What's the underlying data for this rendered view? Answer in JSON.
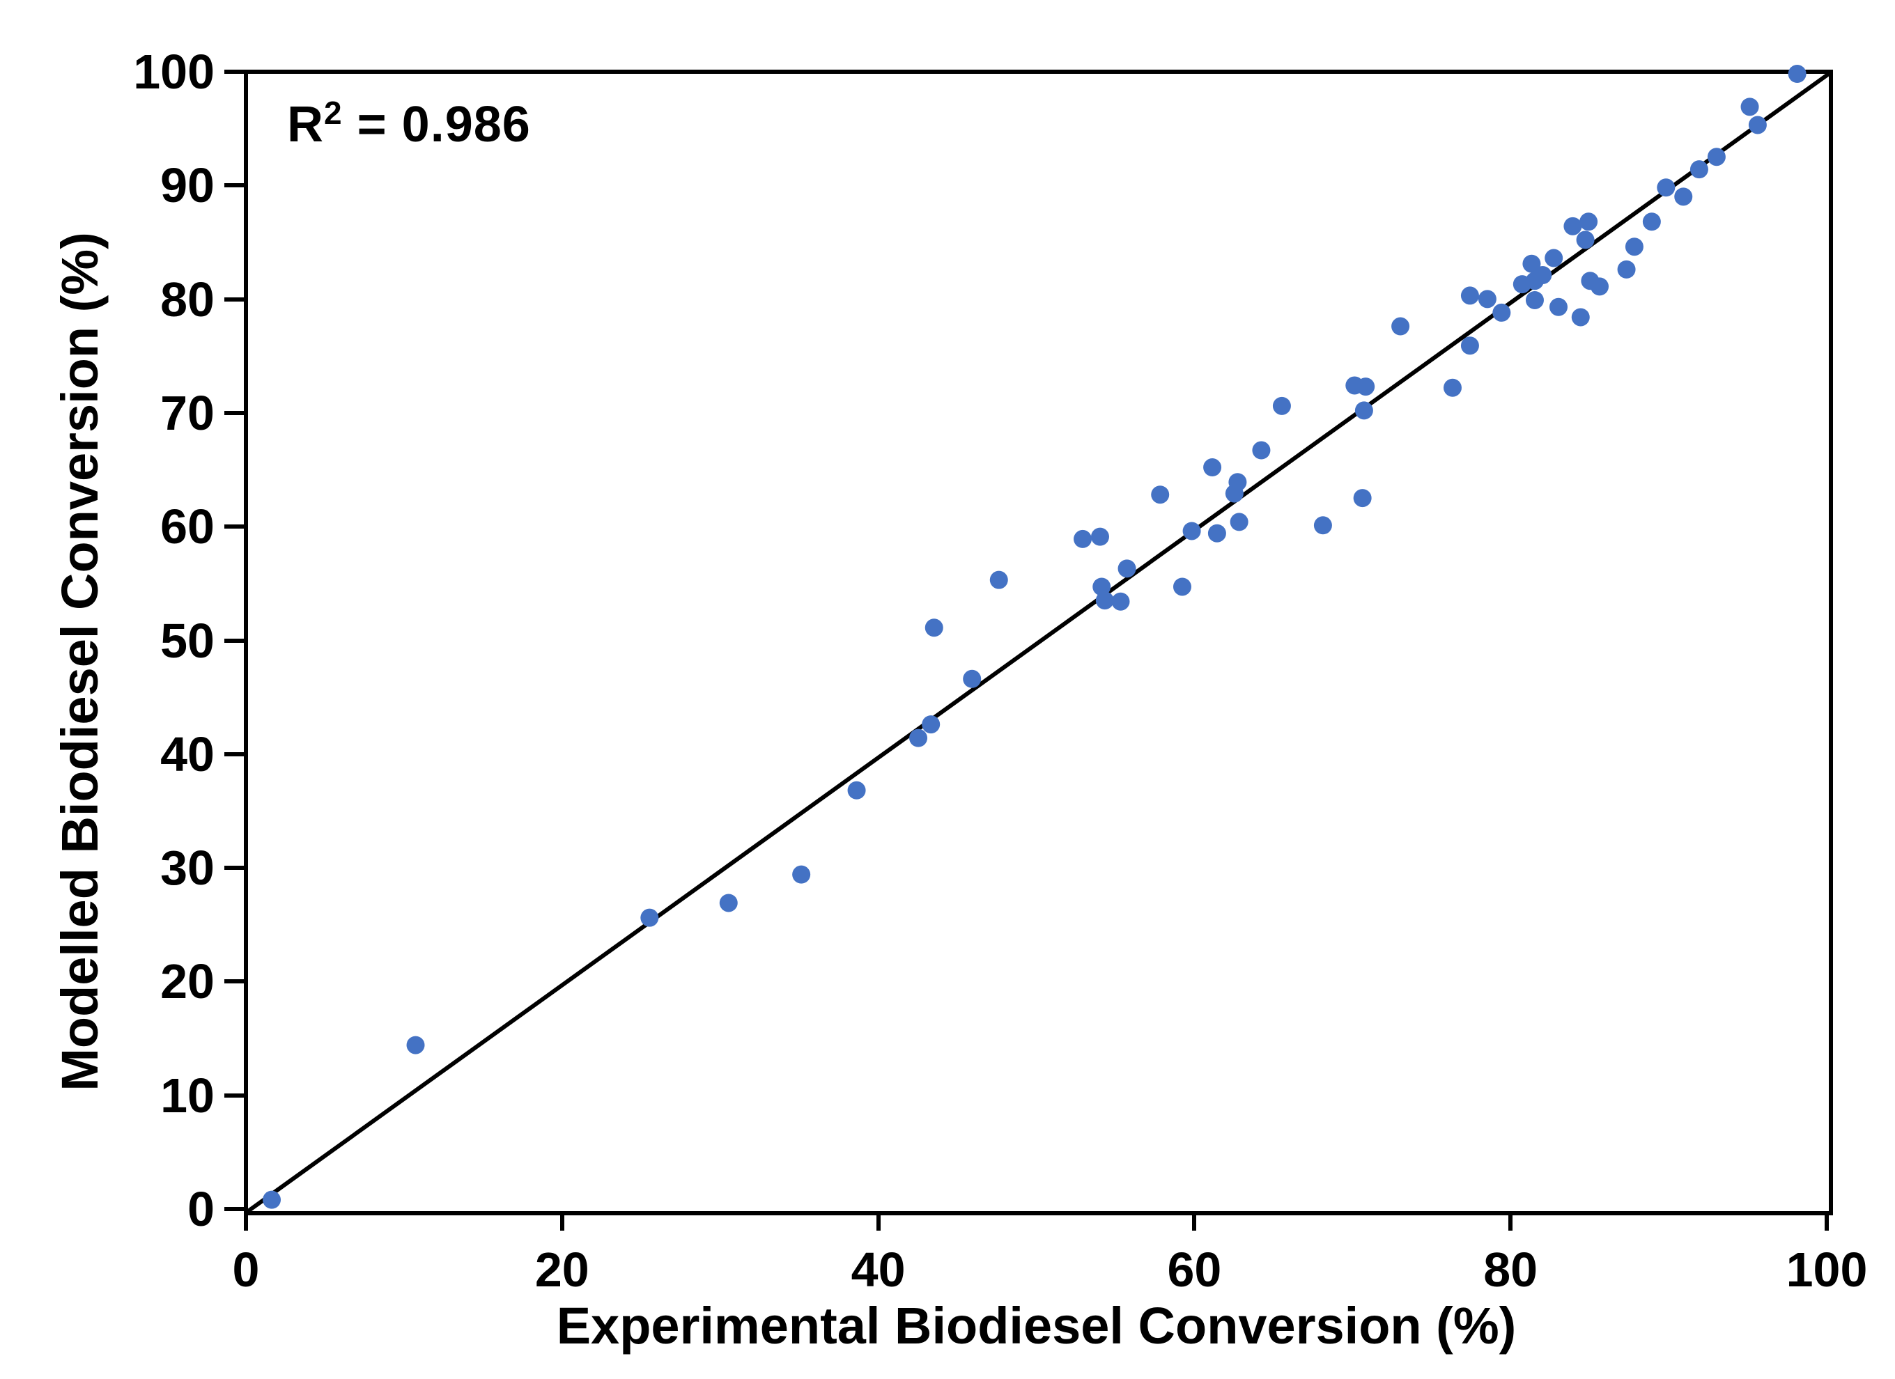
{
  "chart_data": {
    "type": "scatter",
    "title": "",
    "xlabel": "Experimental Biodiesel Conversion (%)",
    "ylabel": "Modelled Biodiesel Conversion (%)",
    "xlim": [
      0,
      100
    ],
    "ylim": [
      0,
      100
    ],
    "x_ticks": [
      0,
      20,
      40,
      60,
      80,
      100
    ],
    "y_ticks": [
      0,
      10,
      20,
      30,
      40,
      50,
      60,
      70,
      80,
      90,
      100
    ],
    "grid": false,
    "legend": "none",
    "annotation": {
      "base": "R",
      "sup": "2",
      "rest": " = 0.986"
    },
    "marker_color": "#4472C4",
    "marker_radius_px": 13,
    "axis_color": "#000000",
    "identity_line": {
      "from": [
        0,
        0
      ],
      "to": [
        100,
        100
      ],
      "color": "#000000"
    },
    "points": [
      [
        1.5,
        1.0
      ],
      [
        10.6,
        14.6
      ],
      [
        25.4,
        25.8
      ],
      [
        30.4,
        27.1
      ],
      [
        35.0,
        29.6
      ],
      [
        38.5,
        37.0
      ],
      [
        42.4,
        41.6
      ],
      [
        43.2,
        42.8
      ],
      [
        43.4,
        51.3
      ],
      [
        45.8,
        46.8
      ],
      [
        47.5,
        55.5
      ],
      [
        52.8,
        59.1
      ],
      [
        53.9,
        59.3
      ],
      [
        54.0,
        54.9
      ],
      [
        54.2,
        53.7
      ],
      [
        55.2,
        53.6
      ],
      [
        55.6,
        56.5
      ],
      [
        57.7,
        63.0
      ],
      [
        59.1,
        54.9
      ],
      [
        59.7,
        59.8
      ],
      [
        61.0,
        65.4
      ],
      [
        61.3,
        59.6
      ],
      [
        62.4,
        63.1
      ],
      [
        62.6,
        64.1
      ],
      [
        62.7,
        60.6
      ],
      [
        64.1,
        66.9
      ],
      [
        65.4,
        70.8
      ],
      [
        68.0,
        60.3
      ],
      [
        70.0,
        72.6
      ],
      [
        70.5,
        62.7
      ],
      [
        70.6,
        70.4
      ],
      [
        70.7,
        72.5
      ],
      [
        72.9,
        77.8
      ],
      [
        76.2,
        72.4
      ],
      [
        77.3,
        76.1
      ],
      [
        77.3,
        80.5
      ],
      [
        78.4,
        80.2
      ],
      [
        79.3,
        79.0
      ],
      [
        80.6,
        81.5
      ],
      [
        81.2,
        83.3
      ],
      [
        81.4,
        80.1
      ],
      [
        81.4,
        81.8
      ],
      [
        81.9,
        82.3
      ],
      [
        82.6,
        83.8
      ],
      [
        82.9,
        79.5
      ],
      [
        83.8,
        86.6
      ],
      [
        84.3,
        78.6
      ],
      [
        84.6,
        85.4
      ],
      [
        84.8,
        87.0
      ],
      [
        84.9,
        81.8
      ],
      [
        85.5,
        81.3
      ],
      [
        87.2,
        82.8
      ],
      [
        87.7,
        84.8
      ],
      [
        88.8,
        87.0
      ],
      [
        89.7,
        90.0
      ],
      [
        90.8,
        89.2
      ],
      [
        91.8,
        91.6
      ],
      [
        92.9,
        92.7
      ],
      [
        95.0,
        97.1
      ],
      [
        95.5,
        95.5
      ],
      [
        98.0,
        100.0
      ]
    ]
  }
}
